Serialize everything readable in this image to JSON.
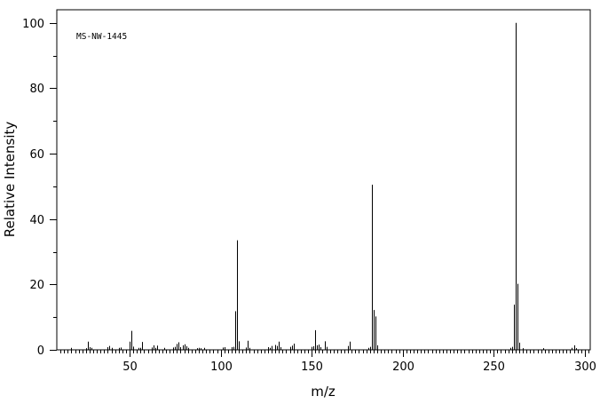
{
  "chart_data": {
    "type": "bar",
    "code_label": "MS-NW-1445",
    "xlabel": "m/z",
    "ylabel": "Relative Intensity",
    "xlim": [
      10,
      303
    ],
    "ylim": [
      0,
      104
    ],
    "x_ticks": [
      50,
      100,
      150,
      200,
      250,
      300
    ],
    "y_ticks": [
      0,
      20,
      40,
      60,
      80,
      100
    ],
    "x_tick_labels": [
      "50",
      "100",
      "150",
      "200",
      "250",
      "300"
    ],
    "y_tick_labels": [
      "0",
      "20",
      "40",
      "60",
      "80",
      "100"
    ],
    "peaks": [
      [
        18,
        0.6
      ],
      [
        26,
        0.5
      ],
      [
        27,
        2.5
      ],
      [
        28,
        0.8
      ],
      [
        29,
        0.6
      ],
      [
        38,
        0.8
      ],
      [
        39,
        1.2
      ],
      [
        40,
        0.6
      ],
      [
        44,
        0.6
      ],
      [
        45,
        0.7
      ],
      [
        50,
        2.5
      ],
      [
        51,
        5.8
      ],
      [
        52,
        1.0
      ],
      [
        55,
        0.6
      ],
      [
        56,
        0.6
      ],
      [
        57,
        2.4
      ],
      [
        62,
        0.7
      ],
      [
        63,
        1.4
      ],
      [
        64,
        0.6
      ],
      [
        65,
        1.3
      ],
      [
        69,
        0.6
      ],
      [
        74,
        0.7
      ],
      [
        75,
        0.9
      ],
      [
        76,
        1.8
      ],
      [
        77,
        2.3
      ],
      [
        78,
        0.8
      ],
      [
        79,
        1.4
      ],
      [
        80,
        1.7
      ],
      [
        81,
        1.1
      ],
      [
        82,
        0.6
      ],
      [
        87,
        0.5
      ],
      [
        88,
        0.6
      ],
      [
        89,
        0.5
      ],
      [
        91,
        0.6
      ],
      [
        101,
        0.7
      ],
      [
        102,
        0.8
      ],
      [
        106,
        0.8
      ],
      [
        107,
        0.9
      ],
      [
        108,
        11.8
      ],
      [
        109,
        33.5
      ],
      [
        110,
        2.6
      ],
      [
        114,
        0.7
      ],
      [
        115,
        2.8
      ],
      [
        116,
        0.6
      ],
      [
        126,
        0.8
      ],
      [
        127,
        0.6
      ],
      [
        128,
        1.2
      ],
      [
        130,
        1.5
      ],
      [
        131,
        1.2
      ],
      [
        132,
        2.5
      ],
      [
        133,
        0.8
      ],
      [
        138,
        0.9
      ],
      [
        139,
        1.3
      ],
      [
        140,
        1.9
      ],
      [
        150,
        0.9
      ],
      [
        151,
        1.1
      ],
      [
        152,
        6.0
      ],
      [
        153,
        1.4
      ],
      [
        154,
        1.6
      ],
      [
        155,
        0.8
      ],
      [
        157,
        2.6
      ],
      [
        158,
        0.9
      ],
      [
        170,
        1.2
      ],
      [
        171,
        2.5
      ],
      [
        181,
        0.6
      ],
      [
        182,
        0.9
      ],
      [
        183,
        50.5
      ],
      [
        184,
        12.2
      ],
      [
        185,
        10.2
      ],
      [
        186,
        1.4
      ],
      [
        259,
        0.6
      ],
      [
        260,
        0.9
      ],
      [
        261,
        13.8
      ],
      [
        262,
        100
      ],
      [
        263,
        20.2
      ],
      [
        264,
        2.2
      ],
      [
        266,
        0.5
      ],
      [
        277,
        0.5
      ],
      [
        293,
        0.6
      ],
      [
        294,
        1.4
      ],
      [
        295,
        0.5
      ]
    ]
  }
}
